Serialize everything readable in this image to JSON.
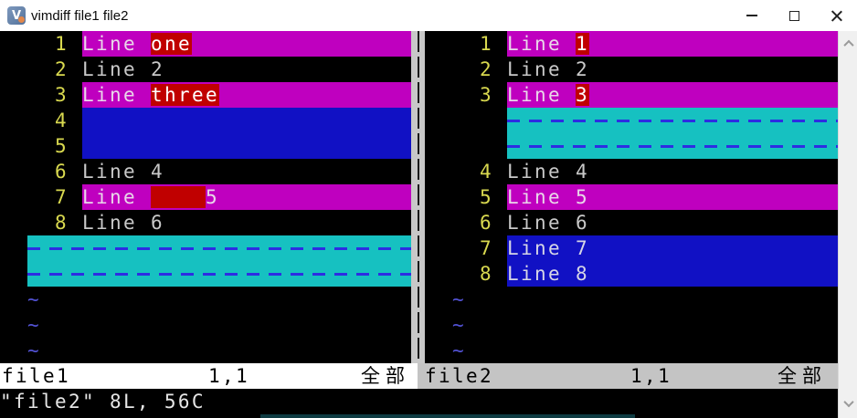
{
  "window": {
    "title": "vimdiff file1 file2",
    "icon": "vim-logo",
    "controls": {
      "minimize": "minimize",
      "maximize": "maximize",
      "close": "close"
    }
  },
  "colors": {
    "change": "#bf00bf",
    "difftext": "#c00000",
    "add": "#1111c4",
    "del": "#16c1c1",
    "dash": "#2d2de2",
    "num": "#d9d94f",
    "fg": "#c9c9c9",
    "tilde": "#5252d4"
  },
  "tilde_char": "~",
  "panes": {
    "left": {
      "rows": [
        {
          "num": "1",
          "type": "change",
          "segs": [
            [
              "Line ",
              "change"
            ],
            [
              "one",
              "difftext"
            ]
          ]
        },
        {
          "num": "2",
          "type": "normal",
          "segs": [
            [
              "Line 2",
              "normal"
            ]
          ]
        },
        {
          "num": "3",
          "type": "change",
          "segs": [
            [
              "Line ",
              "change"
            ],
            [
              "three",
              "difftext"
            ]
          ]
        },
        {
          "num": "4",
          "type": "add",
          "segs": []
        },
        {
          "num": "5",
          "type": "add",
          "segs": []
        },
        {
          "num": "6",
          "type": "normal",
          "segs": [
            [
              "Line 4",
              "normal"
            ]
          ]
        },
        {
          "num": "7",
          "type": "change",
          "segs": [
            [
              "Line ",
              "change"
            ],
            [
              "    ",
              "difftext"
            ],
            [
              "5",
              "change"
            ]
          ]
        },
        {
          "num": "8",
          "type": "normal",
          "segs": [
            [
              "Line 6",
              "normal"
            ]
          ]
        },
        {
          "type": "filler"
        },
        {
          "type": "filler"
        },
        {
          "type": "tilde"
        },
        {
          "type": "tilde"
        },
        {
          "type": "tilde"
        }
      ],
      "status": {
        "file": "file1",
        "ruler": "1,1",
        "scroll_pos": "全部"
      }
    },
    "right": {
      "rows": [
        {
          "num": "1",
          "type": "change",
          "segs": [
            [
              "Line ",
              "change"
            ],
            [
              "1",
              "difftext"
            ]
          ]
        },
        {
          "num": "2",
          "type": "normal",
          "segs": [
            [
              "Line 2",
              "normal"
            ]
          ]
        },
        {
          "num": "3",
          "type": "change",
          "segs": [
            [
              "Line ",
              "change"
            ],
            [
              "3",
              "difftext"
            ]
          ]
        },
        {
          "type": "filler"
        },
        {
          "type": "filler"
        },
        {
          "num": "4",
          "type": "normal",
          "segs": [
            [
              "Line 4",
              "normal"
            ]
          ]
        },
        {
          "num": "5",
          "type": "change",
          "segs": [
            [
              "Line 5",
              "change"
            ]
          ]
        },
        {
          "num": "6",
          "type": "normal",
          "segs": [
            [
              "Line 6",
              "normal"
            ]
          ]
        },
        {
          "num": "7",
          "type": "add",
          "segs": [
            [
              "Line 7",
              "add"
            ]
          ]
        },
        {
          "num": "8",
          "type": "add",
          "segs": [
            [
              "Line 8",
              "add"
            ]
          ]
        },
        {
          "type": "tilde"
        },
        {
          "type": "tilde"
        },
        {
          "type": "tilde"
        }
      ],
      "status": {
        "file": "file2",
        "ruler": "1,1",
        "scroll_pos": "全部"
      }
    }
  },
  "cmdline": {
    "message": "\"file2\" 8L, 56C"
  },
  "icons": {
    "app": "vim-logo-icon",
    "scroll_up": "chevron-up-icon",
    "scroll_down": "chevron-down-icon"
  }
}
